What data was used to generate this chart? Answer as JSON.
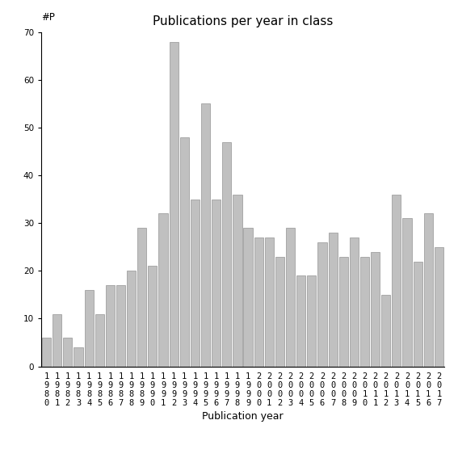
{
  "title": "Publications per year in class",
  "xlabel": "Publication year",
  "ylabel_text": "#P",
  "years": [
    1980,
    1981,
    1982,
    1983,
    1984,
    1985,
    1986,
    1987,
    1988,
    1989,
    1990,
    1991,
    1992,
    1993,
    1994,
    1995,
    1996,
    1997,
    1998,
    1999,
    2000,
    2001,
    2002,
    2003,
    2004,
    2005,
    2006,
    2007,
    2008,
    2009,
    2010,
    2011,
    2012,
    2013,
    2014,
    2015,
    2016,
    2017
  ],
  "values": [
    6,
    11,
    6,
    4,
    16,
    11,
    17,
    17,
    20,
    29,
    21,
    32,
    68,
    48,
    35,
    55,
    35,
    47,
    36,
    29,
    27,
    27,
    23,
    29,
    19,
    19,
    26,
    28,
    23,
    27,
    23,
    24,
    15,
    36,
    31,
    22,
    32,
    25
  ],
  "bar_color": "#c0c0c0",
  "bar_edgecolor": "#808080",
  "bar_linewidth": 0.4,
  "ylim": [
    0,
    70
  ],
  "yticks": [
    0,
    10,
    20,
    30,
    40,
    50,
    60,
    70
  ],
  "background_color": "#ffffff",
  "title_fontsize": 11,
  "xlabel_fontsize": 9,
  "tick_fontsize": 7.5
}
